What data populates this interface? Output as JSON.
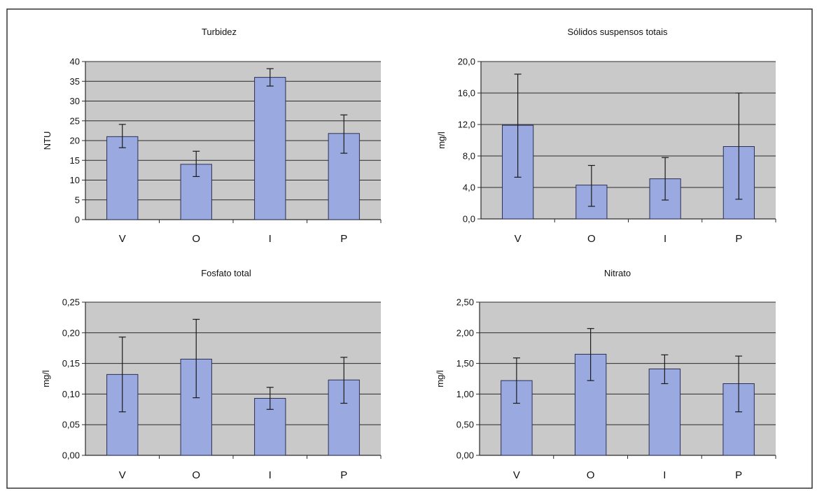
{
  "colors": {
    "bar_fill": "#9aaae0",
    "bar_stroke": "#2a2f55",
    "plot_bg": "#c9c9c9",
    "grid": "#2b2b2b",
    "border": "#333333"
  },
  "chart_data": [
    {
      "type": "bar",
      "title": "Turbidez",
      "ylabel": "NTU",
      "categories": [
        "V",
        "O",
        "I",
        "P"
      ],
      "values": [
        21,
        14,
        36,
        21.8
      ],
      "error_low": [
        18.2,
        10.9,
        33.8,
        16.8
      ],
      "error_high": [
        24.1,
        17.3,
        38.2,
        26.5
      ],
      "ylim": [
        0,
        40
      ],
      "yticks": [
        "0",
        "5",
        "10",
        "15",
        "20",
        "25",
        "30",
        "35",
        "40"
      ],
      "grid": true
    },
    {
      "type": "bar",
      "title": "Sólidos suspensos totais",
      "ylabel": "mg/l",
      "categories": [
        "V",
        "O",
        "I",
        "P"
      ],
      "values": [
        11.9,
        4.3,
        5.1,
        9.2
      ],
      "error_low": [
        5.3,
        1.6,
        2.4,
        2.5
      ],
      "error_high": [
        18.4,
        6.8,
        7.8,
        16.0
      ],
      "ylim": [
        0,
        20
      ],
      "yticks": [
        "0,0",
        "4,0",
        "8,0",
        "12,0",
        "16,0",
        "20,0"
      ],
      "grid": true
    },
    {
      "type": "bar",
      "title": "Fosfato total",
      "ylabel": "mg/l",
      "categories": [
        "V",
        "O",
        "I",
        "P"
      ],
      "values": [
        0.132,
        0.157,
        0.093,
        0.123
      ],
      "error_low": [
        0.071,
        0.094,
        0.075,
        0.085
      ],
      "error_high": [
        0.193,
        0.222,
        0.111,
        0.16
      ],
      "ylim": [
        0,
        0.25
      ],
      "yticks": [
        "0,00",
        "0,05",
        "0,10",
        "0,15",
        "0,20",
        "0,25"
      ],
      "grid": true
    },
    {
      "type": "bar",
      "title": "Nitrato",
      "ylabel": "mg/l",
      "categories": [
        "V",
        "O",
        "I",
        "P"
      ],
      "values": [
        1.22,
        1.65,
        1.41,
        1.17
      ],
      "error_low": [
        0.85,
        1.22,
        1.17,
        0.71
      ],
      "error_high": [
        1.59,
        2.07,
        1.64,
        1.62
      ],
      "ylim": [
        0,
        2.5
      ],
      "yticks": [
        "0,00",
        "0,50",
        "1,00",
        "1,50",
        "2,00",
        "2,50"
      ],
      "grid": true
    }
  ]
}
